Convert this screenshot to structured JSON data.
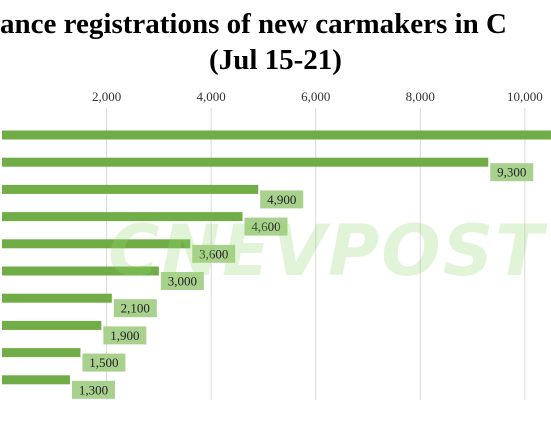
{
  "chart_data": {
    "type": "bar",
    "orientation": "horizontal",
    "title_line1": "ance registrations of new carmakers in C",
    "title_line2": "(Jul 15-21)",
    "xticks": [
      "2,000",
      "4,000",
      "6,000",
      "8,000",
      "10,000"
    ],
    "xtick_values": [
      2000,
      4000,
      6000,
      8000,
      10000
    ],
    "xlim": [
      0,
      10500
    ],
    "values": [
      11000,
      9300,
      4900,
      4600,
      3600,
      3000,
      2100,
      1900,
      1500,
      1300
    ],
    "data_labels": [
      "",
      "9,300",
      "4,900",
      "4,600",
      "3,600",
      "3,000",
      "2,100",
      "1,900",
      "1,500",
      "1,300"
    ],
    "grid": true,
    "bar_color": "#70ad47",
    "label_bg_color": "#a9d18e",
    "watermark": "CNEVPOST"
  }
}
